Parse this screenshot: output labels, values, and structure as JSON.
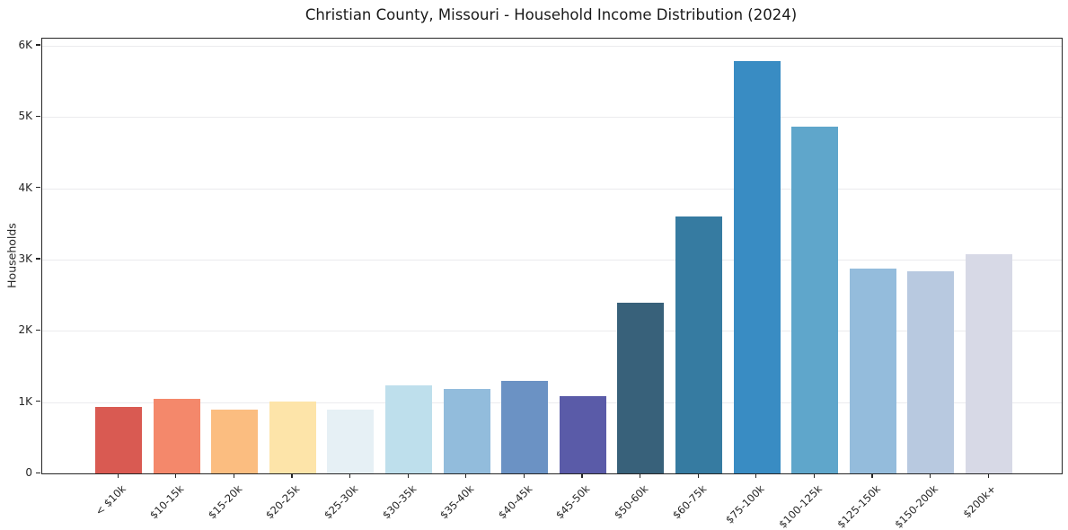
{
  "chart_data": {
    "type": "bar",
    "title": "Christian County, Missouri - Household Income Distribution (2024)",
    "xlabel": "",
    "ylabel": "Households",
    "categories": [
      "< $10k",
      "$10-15k",
      "$15-20k",
      "$20-25k",
      "$25-30k",
      "$30-35k",
      "$35-40k",
      "$40-45k",
      "$45-50k",
      "$50-60k",
      "$60-75k",
      "$75-100k",
      "$100-125k",
      "$125-150k",
      "$150-200k",
      "$200k+"
    ],
    "values": [
      930,
      1050,
      890,
      1010,
      890,
      1230,
      1180,
      1300,
      1080,
      2390,
      3610,
      5780,
      4860,
      2880,
      2840,
      3070
    ],
    "bar_colors": [
      "#d95a52",
      "#f4886b",
      "#fbbd80",
      "#fde4a9",
      "#e6f0f5",
      "#bedfec",
      "#92bcdc",
      "#6b92c4",
      "#5a5ba8",
      "#38617a",
      "#367ba1",
      "#398cc3",
      "#5fa6cb",
      "#94bcdc",
      "#b8c9e0",
      "#d7d9e6"
    ],
    "ytick_values": [
      0,
      1000,
      2000,
      3000,
      4000,
      5000,
      6000
    ],
    "ytick_labels": [
      "0",
      "1K",
      "2K",
      "3K",
      "4K",
      "5K",
      "6K"
    ],
    "ylim": [
      0,
      6100
    ],
    "grid": "horizontal",
    "legend": "none",
    "colors": {
      "axis": "#262626",
      "grid": "#ebebee",
      "text": "#262626",
      "background": "#ffffff"
    }
  }
}
